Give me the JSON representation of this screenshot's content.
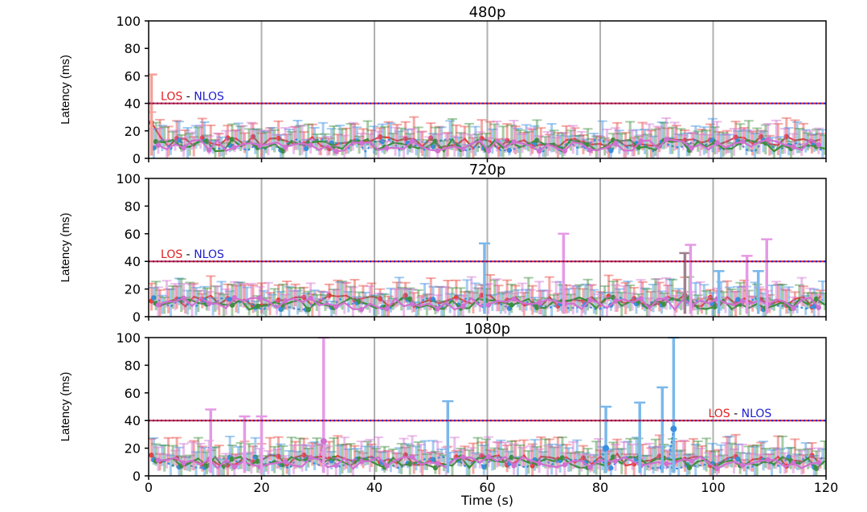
{
  "chart_data": [
    {
      "type": "line",
      "title": "480p",
      "ylabel": "Latency (ms)",
      "xlabel": "",
      "xlim": [
        0,
        120
      ],
      "ylim": [
        0,
        100
      ],
      "xticks": [],
      "yticks": [
        "0",
        "20",
        "40",
        "60",
        "80",
        "100"
      ],
      "grid": true,
      "threshold": 40,
      "annotation": {
        "los": "LOS",
        "sep": "-",
        "nlos": "NLOS",
        "x": 1
      },
      "spikes": [
        {
          "x": 0.5,
          "y": 61,
          "color": "#f4a09a"
        }
      ],
      "series": [
        {
          "color": "#e8413a",
          "start": 26
        },
        {
          "color": "#3a8ee0"
        },
        {
          "color": "#3c8f3c"
        },
        {
          "color": "#d070d0"
        }
      ]
    },
    {
      "type": "line",
      "title": "720p",
      "ylabel": "Latency (ms)",
      "xlabel": "",
      "xlim": [
        0,
        120
      ],
      "ylim": [
        0,
        100
      ],
      "xticks": [],
      "yticks": [
        "0",
        "20",
        "40",
        "60",
        "80",
        "100"
      ],
      "grid": true,
      "threshold": 40,
      "annotation": {
        "los": "LOS",
        "sep": "-",
        "nlos": "NLOS",
        "x": 1
      },
      "spikes": [
        {
          "x": 59.5,
          "y": 53,
          "color": "#7ab8ec"
        },
        {
          "x": 73.5,
          "y": 60,
          "color": "#e59ae5"
        },
        {
          "x": 95,
          "y": 46,
          "color": "#a08090"
        },
        {
          "x": 96,
          "y": 52,
          "color": "#e59ae5"
        },
        {
          "x": 101,
          "y": 33,
          "color": "#7ab8ec"
        },
        {
          "x": 106,
          "y": 44,
          "color": "#e59ae5"
        },
        {
          "x": 109.5,
          "y": 56,
          "color": "#e59ae5"
        },
        {
          "x": 108,
          "y": 33,
          "color": "#7ab8ec"
        }
      ],
      "series": [
        {
          "color": "#e8413a"
        },
        {
          "color": "#3a8ee0"
        },
        {
          "color": "#3c8f3c"
        },
        {
          "color": "#d070d0"
        }
      ]
    },
    {
      "type": "line",
      "title": "1080p",
      "ylabel": "Latency (ms)",
      "xlabel": "Time (s)",
      "xlim": [
        0,
        120
      ],
      "ylim": [
        0,
        100
      ],
      "xticks": [
        "0",
        "20",
        "40",
        "60",
        "80",
        "100",
        "120"
      ],
      "yticks": [
        "0",
        "20",
        "40",
        "60",
        "80",
        "100"
      ],
      "grid": true,
      "threshold": 40,
      "annotation": {
        "los": "LOS",
        "sep": "-",
        "nlos": "NLOS",
        "x": 98
      },
      "spikes": [
        {
          "x": 11,
          "y": 48,
          "color": "#e59ae5"
        },
        {
          "x": 17,
          "y": 43,
          "color": "#e59ae5"
        },
        {
          "x": 20,
          "y": 43,
          "color": "#e59ae5"
        },
        {
          "x": 31,
          "y": 100,
          "color": "#e59ae5"
        },
        {
          "x": 53,
          "y": 54,
          "color": "#7ab8ec"
        },
        {
          "x": 81,
          "y": 50,
          "color": "#7ab8ec"
        },
        {
          "x": 87,
          "y": 53,
          "color": "#7ab8ec"
        },
        {
          "x": 91,
          "y": 64,
          "color": "#7ab8ec"
        },
        {
          "x": 93,
          "y": 100,
          "color": "#7ab8ec"
        }
      ],
      "markers": [
        {
          "x": 31,
          "y": 25,
          "color": "#d070d0"
        },
        {
          "x": 81,
          "y": 20,
          "color": "#3a8ee0"
        },
        {
          "x": 93,
          "y": 34,
          "color": "#3a8ee0"
        }
      ],
      "series": [
        {
          "color": "#e8413a"
        },
        {
          "color": "#3a8ee0"
        },
        {
          "color": "#3c8f3c"
        },
        {
          "color": "#d070d0"
        }
      ]
    }
  ]
}
